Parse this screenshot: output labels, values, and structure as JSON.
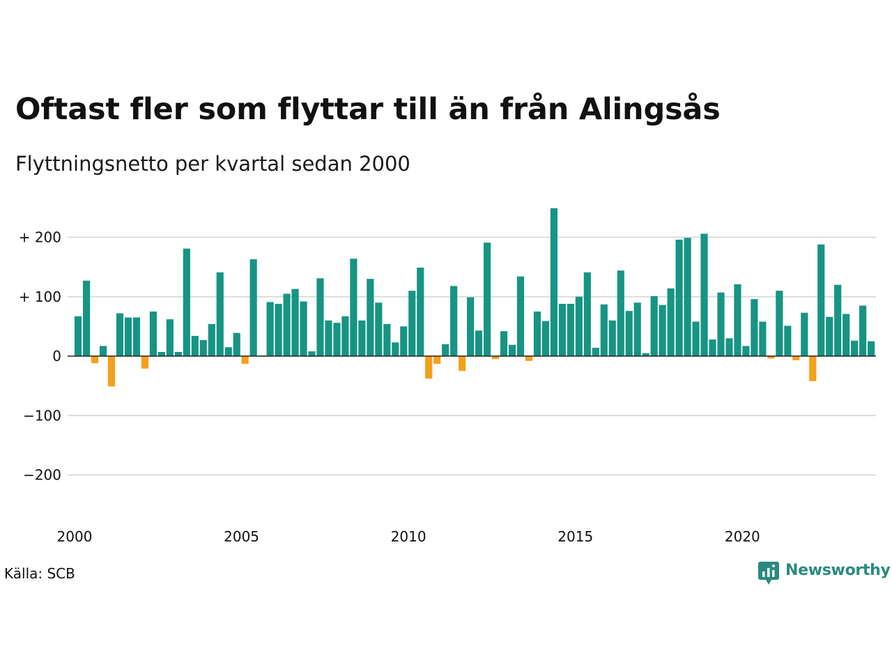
{
  "header": {
    "title": "Oftast fler som flyttar till än från Alingsås",
    "subtitle": "Flyttningsnetto per kvartal sedan 2000"
  },
  "footer": {
    "source": "Källa: SCB",
    "brand": "Newsworthy"
  },
  "colors": {
    "positive": "#179484",
    "negative": "#f5a01a",
    "grid": "#dcdcdc",
    "brand": "#2a8a7f"
  },
  "chart_data": {
    "type": "bar",
    "title": "Oftast fler som flyttar till än från Alingsås",
    "subtitle": "Flyttningsnetto per kvartal sedan 2000",
    "xlabel": "",
    "ylabel": "",
    "ylim": [
      -200,
      200
    ],
    "yticks": [
      {
        "value": 200,
        "label": "+ 200"
      },
      {
        "value": 100,
        "label": "+ 100"
      },
      {
        "value": 0,
        "label": "0"
      },
      {
        "value": -100,
        "label": "−100"
      },
      {
        "value": -200,
        "label": "−200"
      }
    ],
    "xticks": [
      {
        "year": 2000,
        "label": "2000"
      },
      {
        "year": 2005,
        "label": "2005"
      },
      {
        "year": 2010,
        "label": "2010"
      },
      {
        "year": 2015,
        "label": "2015"
      },
      {
        "year": 2020,
        "label": "2020"
      }
    ],
    "grid": true,
    "start_year": 2000,
    "periods_per_year": 4,
    "values": [
      67,
      127,
      -12,
      17,
      -51,
      72,
      65,
      65,
      -21,
      75,
      7,
      62,
      7,
      181,
      34,
      27,
      54,
      141,
      15,
      39,
      -13,
      163,
      1,
      91,
      88,
      105,
      113,
      92,
      8,
      131,
      60,
      56,
      67,
      164,
      60,
      130,
      90,
      54,
      23,
      50,
      110,
      149,
      -38,
      -13,
      20,
      118,
      -25,
      99,
      43,
      191,
      -5,
      42,
      19,
      134,
      -8,
      75,
      59,
      249,
      88,
      88,
      100,
      141,
      14,
      87,
      60,
      144,
      76,
      90,
      5,
      101,
      86,
      114,
      196,
      199,
      58,
      206,
      28,
      107,
      30,
      121,
      17,
      96,
      58,
      -4,
      110,
      51,
      -7,
      73,
      -42,
      188,
      66,
      120,
      71,
      26,
      85,
      25
    ]
  }
}
